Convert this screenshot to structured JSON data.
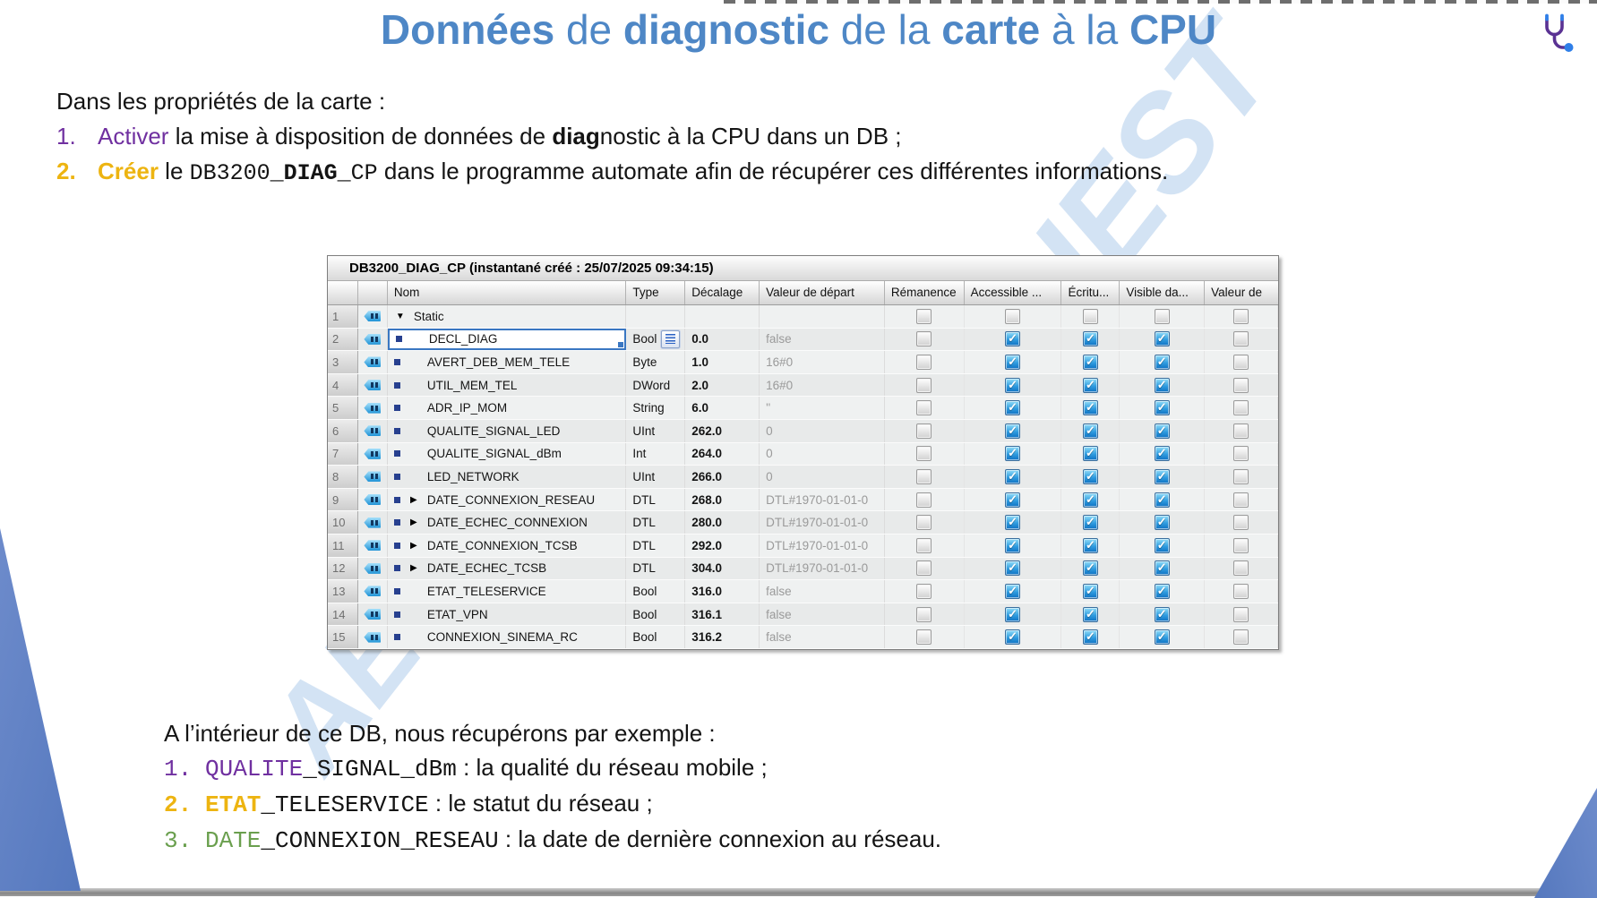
{
  "title": {
    "segments": [
      "Données",
      " de ",
      "diagnostic",
      " de la ",
      "carte",
      " à la ",
      "CPU"
    ]
  },
  "icons": {
    "header": "stethoscope-icon"
  },
  "intro": "Dans les propriétés de la carte :",
  "steps": [
    {
      "num": "1.",
      "keyword": "Activer",
      "text_a": " la mise à disposition de données de ",
      "bold": "diag",
      "text_b": "nostic à la CPU dans un DB ;"
    },
    {
      "num": "2.",
      "keyword": "Créer",
      "text_a": " le ",
      "code_a": "DB3200",
      "code_b": "_DIAG_",
      "code_c": "CP",
      "text_b": " dans le programme automate afin de récupérer ces différentes informations."
    }
  ],
  "db_table": {
    "title": "DB3200_DIAG_CP (instantané créé : 25/07/2025 09:34:15)",
    "columns": [
      "Nom",
      "Type",
      "Décalage",
      "Valeur de départ",
      "Rémanence",
      "Accessible ...",
      "Écritu...",
      "Visible da...",
      "Valeur de"
    ],
    "rows": [
      {
        "num": "1",
        "name": "Static",
        "group": true,
        "expand": "down",
        "type": "",
        "offset": "",
        "start": "",
        "checks": [
          false,
          false,
          false,
          false,
          false
        ]
      },
      {
        "num": "2",
        "name": "DECL_DIAG",
        "selected": true,
        "type_button": true,
        "type": "Bool",
        "offset": "0.0",
        "start": "false",
        "checks": [
          false,
          true,
          true,
          true,
          false
        ]
      },
      {
        "num": "3",
        "name": "AVERT_DEB_MEM_TELE",
        "type": "Byte",
        "offset": "1.0",
        "start": "16#0",
        "checks": [
          false,
          true,
          true,
          true,
          false
        ]
      },
      {
        "num": "4",
        "name": "UTIL_MEM_TEL",
        "type": "DWord",
        "offset": "2.0",
        "start": "16#0",
        "checks": [
          false,
          true,
          true,
          true,
          false
        ]
      },
      {
        "num": "5",
        "name": "ADR_IP_MOM",
        "type": "String",
        "offset": "6.0",
        "start": "''",
        "checks": [
          false,
          true,
          true,
          true,
          false
        ]
      },
      {
        "num": "6",
        "name": "QUALITE_SIGNAL_LED",
        "type": "UInt",
        "offset": "262.0",
        "start": "0",
        "checks": [
          false,
          true,
          true,
          true,
          false
        ]
      },
      {
        "num": "7",
        "name": "QUALITE_SIGNAL_dBm",
        "type": "Int",
        "offset": "264.0",
        "start": "0",
        "checks": [
          false,
          true,
          true,
          true,
          false
        ]
      },
      {
        "num": "8",
        "name": "LED_NETWORK",
        "type": "UInt",
        "offset": "266.0",
        "start": "0",
        "checks": [
          false,
          true,
          true,
          true,
          false
        ]
      },
      {
        "num": "9",
        "name": "DATE_CONNEXION_RESEAU",
        "expand": "right",
        "type": "DTL",
        "offset": "268.0",
        "start": "DTL#1970-01-01-0",
        "checks": [
          false,
          true,
          true,
          true,
          false
        ]
      },
      {
        "num": "10",
        "name": "DATE_ECHEC_CONNEXION",
        "expand": "right",
        "type": "DTL",
        "offset": "280.0",
        "start": "DTL#1970-01-01-0",
        "checks": [
          false,
          true,
          true,
          true,
          false
        ]
      },
      {
        "num": "11",
        "name": "DATE_CONNEXION_TCSB",
        "expand": "right",
        "type": "DTL",
        "offset": "292.0",
        "start": "DTL#1970-01-01-0",
        "checks": [
          false,
          true,
          true,
          true,
          false
        ]
      },
      {
        "num": "12",
        "name": "DATE_ECHEC_TCSB",
        "expand": "right",
        "type": "DTL",
        "offset": "304.0",
        "start": "DTL#1970-01-01-0",
        "checks": [
          false,
          true,
          true,
          true,
          false
        ]
      },
      {
        "num": "13",
        "name": "ETAT_TELESERVICE",
        "type": "Bool",
        "offset": "316.0",
        "start": "false",
        "checks": [
          false,
          true,
          true,
          true,
          false
        ]
      },
      {
        "num": "14",
        "name": "ETAT_VPN",
        "type": "Bool",
        "offset": "316.1",
        "start": "false",
        "checks": [
          false,
          true,
          true,
          true,
          false
        ]
      },
      {
        "num": "15",
        "name": "CONNEXION_SINEMA_RC",
        "type": "Bool",
        "offset": "316.2",
        "start": "false",
        "checks": [
          false,
          true,
          true,
          true,
          false
        ]
      }
    ],
    "checkbox_columns": [
      "checkbox-remanence",
      "checkbox-accessible",
      "checkbox-ecriture",
      "checkbox-visible",
      "checkbox-valeur"
    ]
  },
  "footer": {
    "intro": "A l’intérieur de ce DB, nous récupérons par exemple :",
    "items": [
      {
        "num": "1.",
        "keyword": "QUALITE",
        "rest": "_SIGNAL_dBm",
        "desc": " : la qualité du réseau mobile ;",
        "color_class": "purple"
      },
      {
        "num": "2.",
        "keyword": "ETAT",
        "rest": "_TELESERVICE",
        "desc": " : le statut du réseau ;",
        "color_class": "gold"
      },
      {
        "num": "3.",
        "keyword": "DATE",
        "rest": "_CONNEXION_RESEAU",
        "desc": " : la date de dernière connexion au réseau.",
        "color_class": "green"
      }
    ]
  },
  "watermarks": {
    "top_right": "UEST",
    "bottom_left": "AEI"
  },
  "colors": {
    "accent_blue": "#4e87c6",
    "purple": "#7030a0",
    "gold": "#edb411",
    "green": "#6a9f4e",
    "triangle_blue": "#5e80c4",
    "check_blue": "#1f8ad6"
  }
}
